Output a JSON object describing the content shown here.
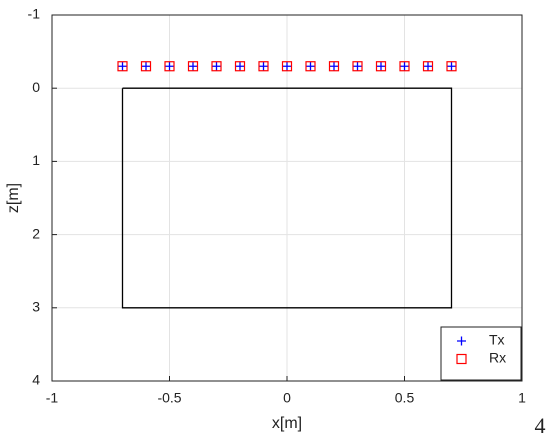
{
  "chart_data": {
    "type": "scatter",
    "xlabel": "x[m]",
    "ylabel": "z[m]",
    "xlim": [
      -1,
      1
    ],
    "xticks": [
      -1,
      -0.5,
      0,
      0.5,
      1
    ],
    "ylim": [
      -1,
      4
    ],
    "yticks": [
      -1,
      0,
      1,
      2,
      3,
      4
    ],
    "y_reversed": true,
    "grid": true,
    "legend": "lower right",
    "series": [
      {
        "name": "Tx",
        "color": "#0000ff",
        "marker": "plus",
        "x": [
          -0.7,
          -0.6,
          -0.5,
          -0.4,
          -0.3,
          -0.2,
          -0.1,
          0,
          0.1,
          0.2,
          0.3,
          0.4,
          0.5,
          0.6,
          0.7
        ],
        "values": [
          -0.3,
          -0.3,
          -0.3,
          -0.3,
          -0.3,
          -0.3,
          -0.3,
          -0.3,
          -0.3,
          -0.3,
          -0.3,
          -0.3,
          -0.3,
          -0.3,
          -0.3
        ]
      },
      {
        "name": "Rx",
        "color": "#ff0000",
        "marker": "square",
        "x": [
          -0.7,
          -0.6,
          -0.5,
          -0.4,
          -0.3,
          -0.2,
          -0.1,
          0,
          0.1,
          0.2,
          0.3,
          0.4,
          0.5,
          0.6,
          0.7
        ],
        "values": [
          -0.3,
          -0.3,
          -0.3,
          -0.3,
          -0.3,
          -0.3,
          -0.3,
          -0.3,
          -0.3,
          -0.3,
          -0.3,
          -0.3,
          -0.3,
          -0.3,
          -0.3
        ]
      }
    ],
    "outline": {
      "color": "#000000",
      "x": [
        -0.7,
        0.7,
        0.7,
        -0.7,
        -0.7
      ],
      "values": [
        0,
        0,
        3,
        3,
        0
      ]
    },
    "annotation": "4"
  }
}
